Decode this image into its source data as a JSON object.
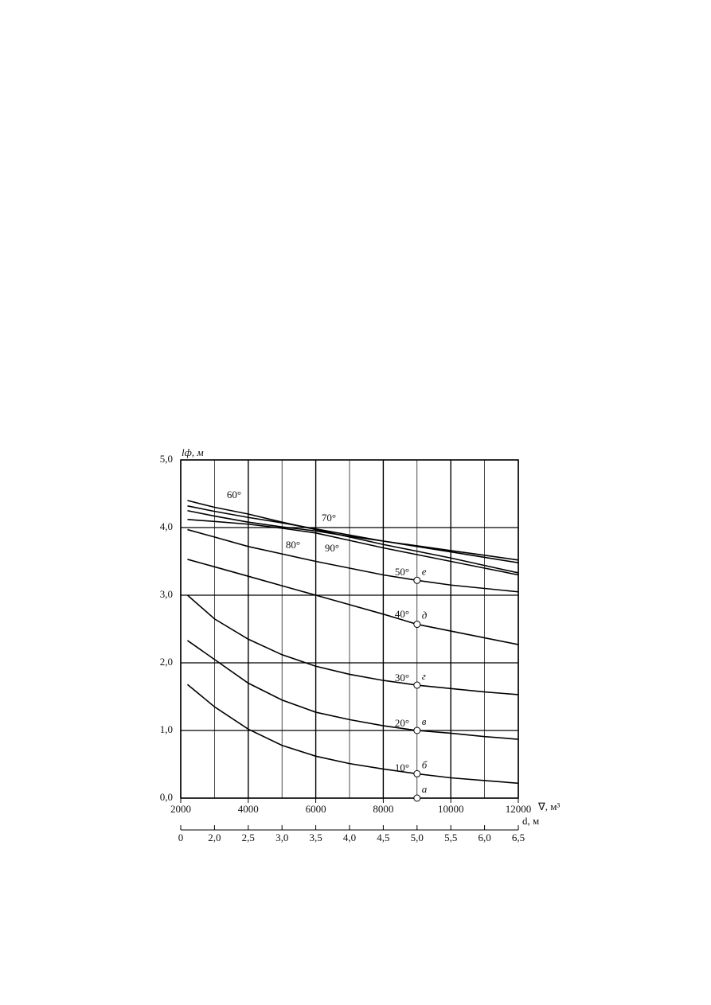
{
  "chart_data": {
    "type": "line",
    "ylabel": "lф, м",
    "xlabel": "∇, м³",
    "x2label": "d, м",
    "x": [
      2200,
      3000,
      4000,
      5000,
      6000,
      7000,
      8000,
      9000,
      10000,
      11000,
      12000
    ],
    "series": [
      {
        "name": "10°",
        "color": "#000000",
        "values": [
          1.68,
          1.35,
          1.02,
          0.78,
          0.62,
          0.51,
          0.43,
          0.36,
          0.3,
          0.26,
          0.22
        ]
      },
      {
        "name": "20°",
        "color": "#000000",
        "values": [
          2.33,
          2.05,
          1.7,
          1.45,
          1.27,
          1.16,
          1.07,
          1.0,
          0.96,
          0.91,
          0.87
        ]
      },
      {
        "name": "30°",
        "color": "#000000",
        "values": [
          3.0,
          2.65,
          2.35,
          2.12,
          1.95,
          1.83,
          1.74,
          1.67,
          1.62,
          1.57,
          1.53
        ]
      },
      {
        "name": "40°",
        "color": "#000000",
        "values": [
          3.53,
          3.42,
          3.28,
          3.14,
          3.0,
          2.86,
          2.72,
          2.57,
          2.47,
          2.37,
          2.27
        ]
      },
      {
        "name": "50°",
        "color": "#000000",
        "values": [
          3.97,
          3.86,
          3.72,
          3.61,
          3.5,
          3.4,
          3.3,
          3.22,
          3.15,
          3.1,
          3.05
        ]
      },
      {
        "name": "60°",
        "color": "#000000",
        "values": [
          4.4,
          4.3,
          4.2,
          4.08,
          3.97,
          3.86,
          3.75,
          3.65,
          3.55,
          3.44,
          3.33
        ]
      },
      {
        "name": "70°",
        "color": "#000000",
        "values": [
          4.32,
          4.24,
          4.15,
          4.07,
          3.98,
          3.89,
          3.8,
          3.72,
          3.64,
          3.56,
          3.48
        ]
      },
      {
        "name": "80°",
        "color": "#000000",
        "values": [
          4.25,
          4.17,
          4.08,
          4.01,
          3.95,
          3.87,
          3.8,
          3.73,
          3.66,
          3.59,
          3.52
        ]
      },
      {
        "name": "90°",
        "color": "#000000",
        "values": [
          4.12,
          4.09,
          4.05,
          3.99,
          3.92,
          3.81,
          3.7,
          3.6,
          3.5,
          3.4,
          3.3
        ]
      }
    ],
    "points": {
      "x": 9000,
      "labels": [
        "а",
        "б",
        "в",
        "г",
        "д",
        "е"
      ],
      "values": [
        0,
        0.36,
        1.0,
        1.67,
        2.57,
        3.22
      ]
    },
    "xlim": [
      2000,
      12000
    ],
    "xticks": [
      2000,
      4000,
      6000,
      8000,
      10000,
      12000
    ],
    "xminor_grid": [
      3000,
      5000,
      7000,
      9000,
      11000
    ],
    "ylim": [
      0,
      5
    ],
    "yticks": [
      {
        "value": 0,
        "label": "0,0"
      },
      {
        "value": 1,
        "label": "1,0"
      },
      {
        "value": 2,
        "label": "2,0"
      },
      {
        "value": 3,
        "label": "3,0"
      },
      {
        "value": 4,
        "label": "4,0"
      },
      {
        "value": 5,
        "label": "5,0"
      }
    ],
    "x2lim": [
      0,
      6.5
    ],
    "x2break": [
      0,
      1.5
    ],
    "x2ticks": [
      0,
      {
        "value": 2,
        "label": "2,0"
      },
      {
        "value": 2.5,
        "label": "2,5"
      },
      {
        "value": 3,
        "label": "3,0"
      },
      {
        "value": 3.5,
        "label": "3,5"
      },
      {
        "value": 4,
        "label": "4,0"
      },
      {
        "value": 4.5,
        "label": "4,5"
      },
      {
        "value": 5,
        "label": "5,0"
      },
      {
        "value": 5.5,
        "label": "5,5"
      },
      {
        "value": 6,
        "label": "6,0"
      },
      {
        "value": 6.5,
        "label": "6,5"
      }
    ],
    "grid": true
  }
}
